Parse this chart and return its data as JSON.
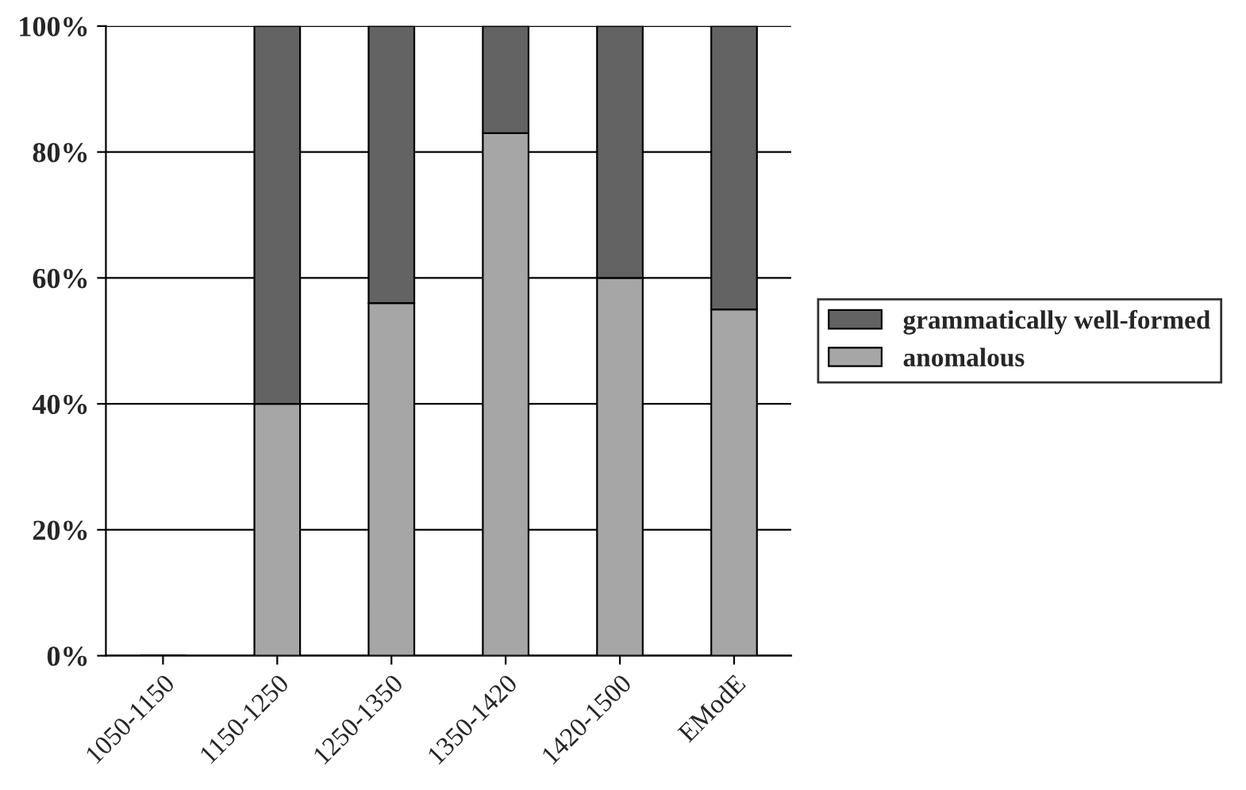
{
  "chart_data": {
    "type": "bar",
    "stacked": true,
    "categories": [
      "1050-1150",
      "1150-1250",
      "1250-1350",
      "1350-1420",
      "1420-1500",
      "EModE"
    ],
    "series": [
      {
        "name": "anomalous",
        "color": "#a6a6a6",
        "values": [
          null,
          40,
          56,
          83,
          60,
          55
        ]
      },
      {
        "name": "grammatically well-formed",
        "color": "#636363",
        "values": [
          null,
          60,
          44,
          17,
          40,
          45
        ]
      }
    ],
    "ylim": [
      0,
      100
    ],
    "yticks": [
      {
        "value": 0,
        "label": "0%"
      },
      {
        "value": 20,
        "label": "20%"
      },
      {
        "value": 40,
        "label": "40%"
      },
      {
        "value": 60,
        "label": "60%"
      },
      {
        "value": 80,
        "label": "80%"
      },
      {
        "value": 100,
        "label": "100%"
      }
    ],
    "grid": "y",
    "legend": "right"
  }
}
